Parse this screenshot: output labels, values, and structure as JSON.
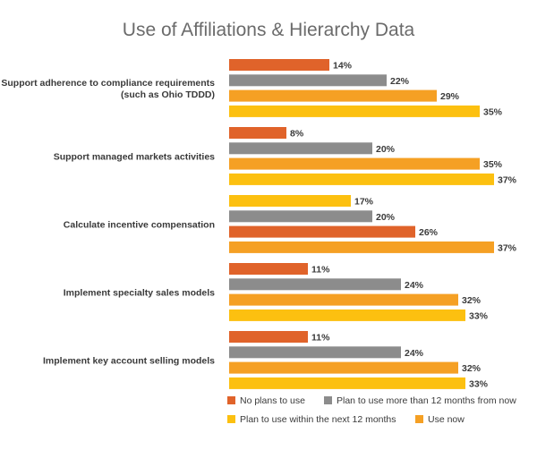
{
  "chart_data": {
    "type": "bar",
    "orientation": "horizontal",
    "title": "Use of Affiliations & Hierarchy Data",
    "xlim": [
      0,
      37
    ],
    "value_suffix": "%",
    "legend_position": "bottom-right",
    "groups": [
      {
        "label_lines": [
          "Support adherence to compliance requirements",
          "(such as Ohio TDDD)"
        ],
        "bars": [
          {
            "series": "No plans to use",
            "value": 14
          },
          {
            "series": "Plan to use more than 12 months from now",
            "value": 22
          },
          {
            "series": "Use now",
            "value": 29
          },
          {
            "series": "Plan to use within the next 12 months",
            "value": 35
          }
        ]
      },
      {
        "label_lines": [
          "Support managed markets activities"
        ],
        "bars": [
          {
            "series": "No plans to use",
            "value": 8
          },
          {
            "series": "Plan to use more than 12 months from now",
            "value": 20
          },
          {
            "series": "Use now",
            "value": 35
          },
          {
            "series": "Plan to use within the next 12 months",
            "value": 37
          }
        ]
      },
      {
        "label_lines": [
          "Calculate incentive compensation"
        ],
        "bars": [
          {
            "series": "Plan to use within the next 12 months",
            "value": 17
          },
          {
            "series": "Plan to use more than 12 months from now",
            "value": 20
          },
          {
            "series": "No plans to use",
            "value": 26
          },
          {
            "series": "Use now",
            "value": 37
          }
        ]
      },
      {
        "label_lines": [
          "Implement specialty sales models"
        ],
        "bars": [
          {
            "series": "No plans to use",
            "value": 11
          },
          {
            "series": "Plan to use more than 12 months from now",
            "value": 24
          },
          {
            "series": "Use now",
            "value": 32
          },
          {
            "series": "Plan to use within the next 12 months",
            "value": 33
          }
        ]
      },
      {
        "label_lines": [
          "Implement key account selling models"
        ],
        "bars": [
          {
            "series": "No plans to use",
            "value": 11
          },
          {
            "series": "Plan to use more than 12 months from now",
            "value": 24
          },
          {
            "series": "Use now",
            "value": 32
          },
          {
            "series": "Plan to use within the next 12 months",
            "value": 33
          }
        ]
      }
    ],
    "legend": [
      {
        "name": "No plans to use",
        "color": "#e0632a"
      },
      {
        "name": "Plan to use more than 12 months from now",
        "color": "#8c8c8c"
      },
      {
        "name": "Plan to use within the next 12 months",
        "color": "#fcc010"
      },
      {
        "name": "Use now",
        "color": "#f5a024"
      }
    ]
  }
}
